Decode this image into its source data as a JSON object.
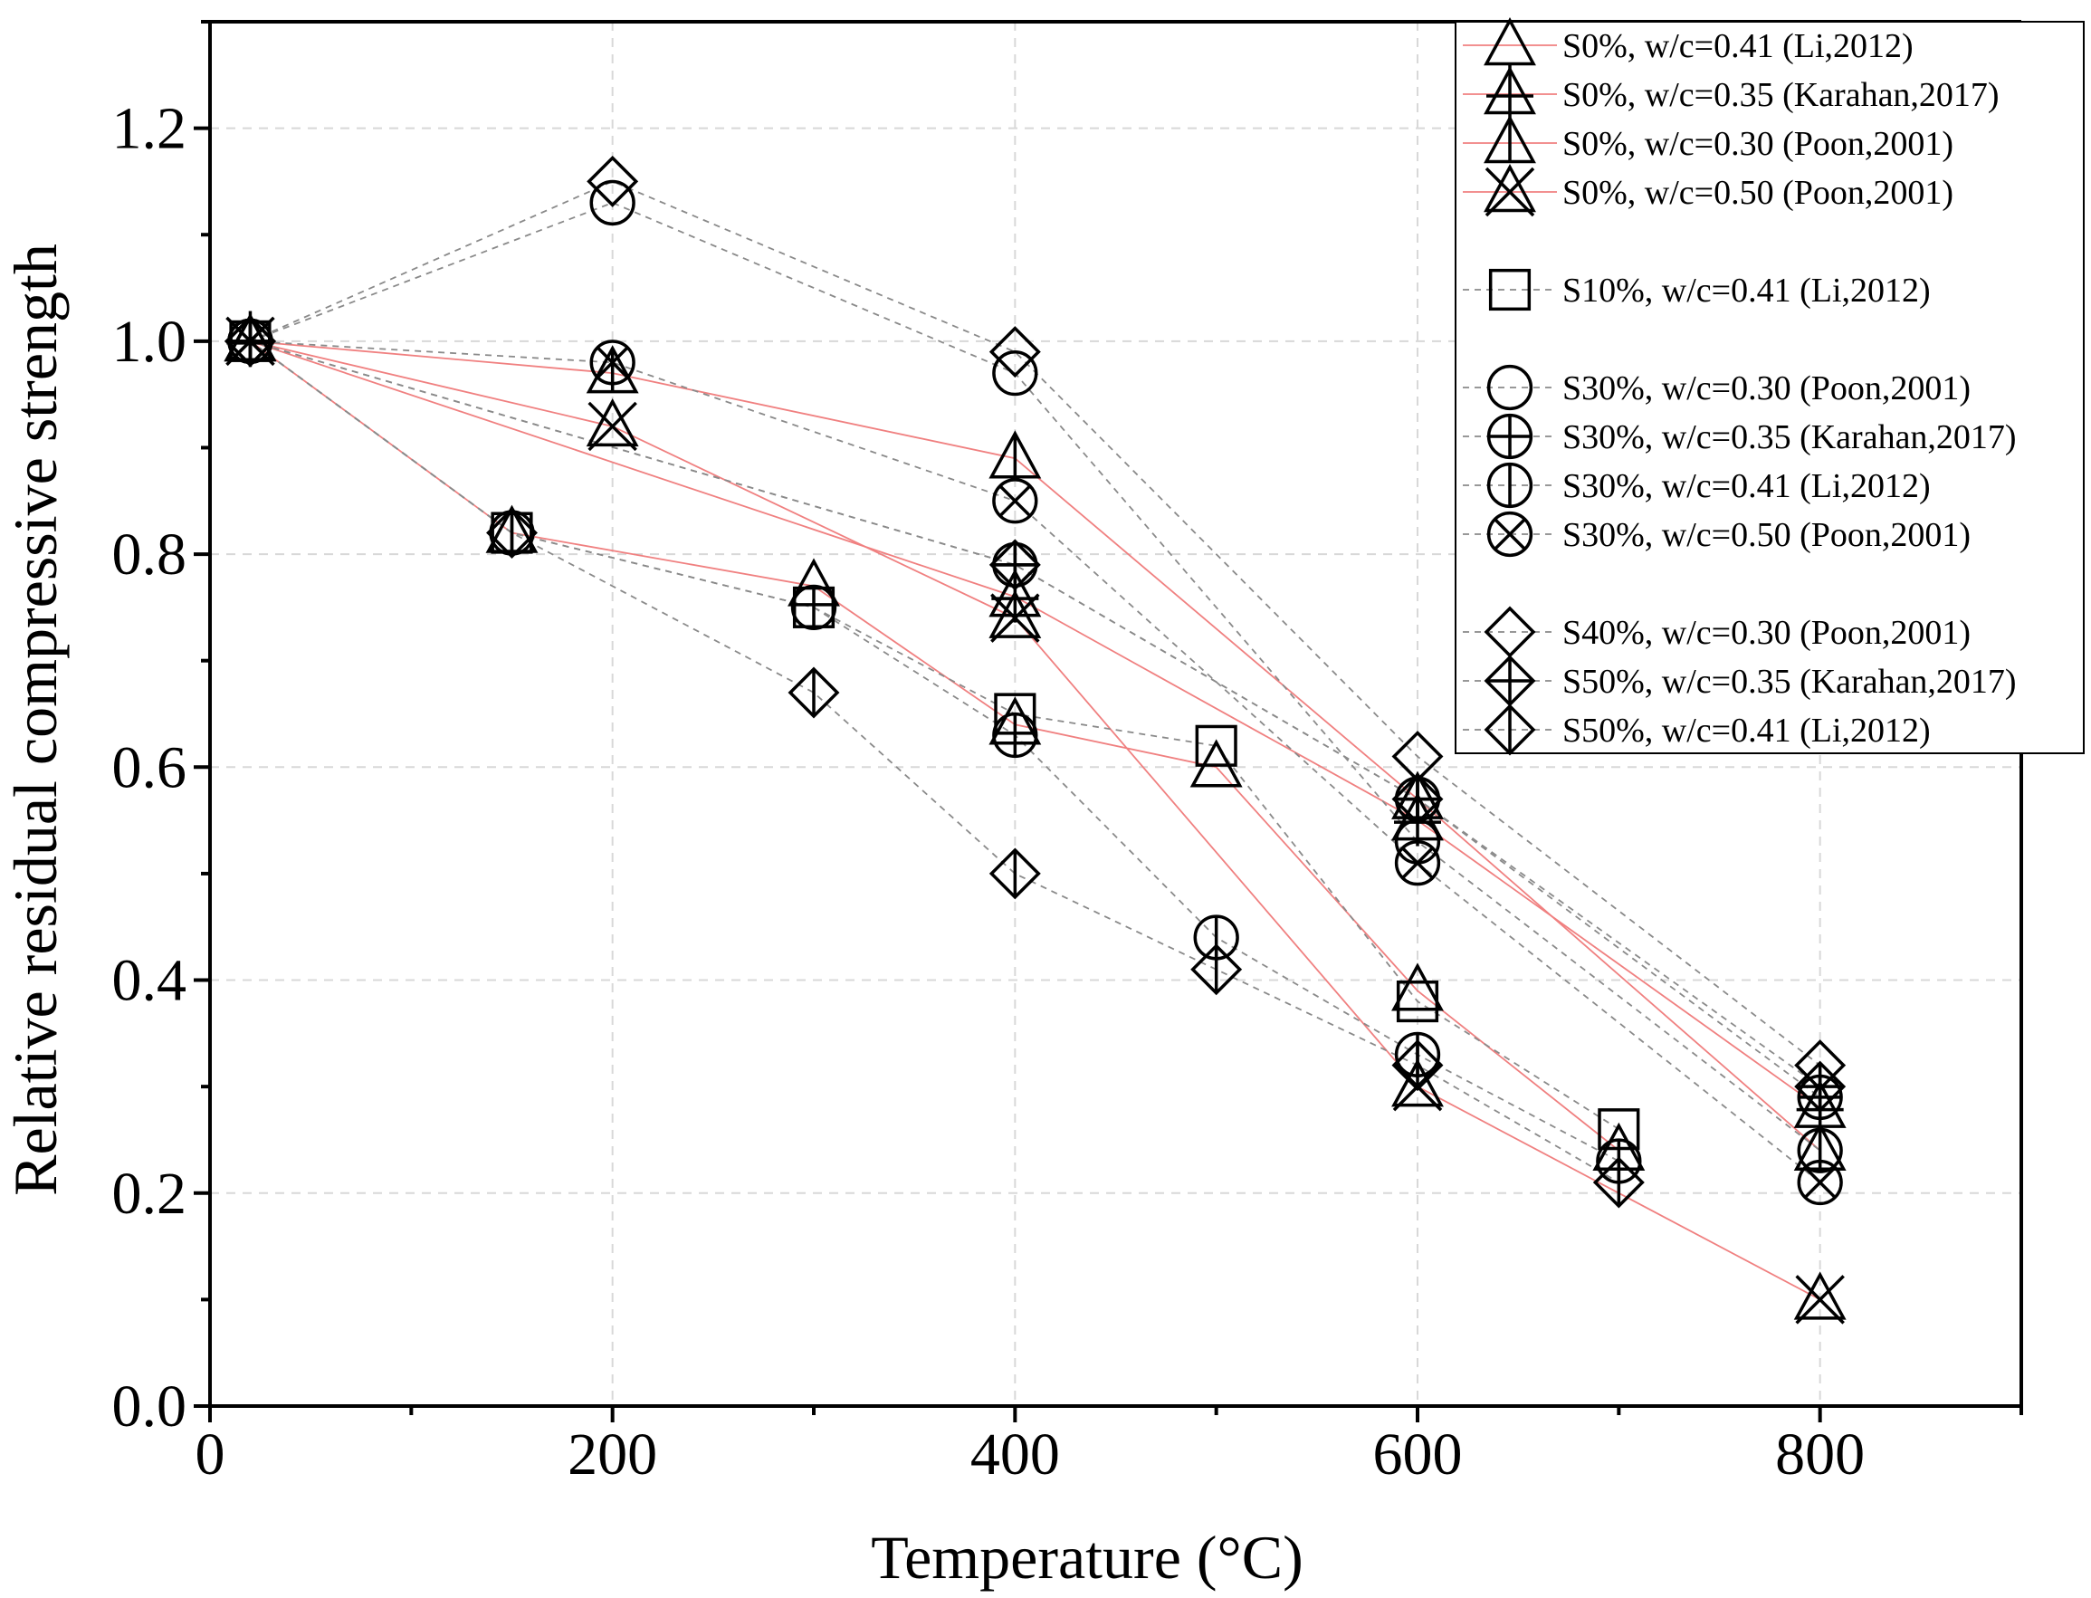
{
  "chart_data": {
    "type": "line",
    "xlabel": "Temperature (°C)",
    "ylabel": "Relative residual compressive strength",
    "xlim": [
      0,
      900
    ],
    "ylim": [
      0,
      1.3
    ],
    "xticks": [
      0,
      200,
      400,
      600,
      800
    ],
    "xtick_labels": [
      "0",
      "200",
      "400",
      "600",
      "800"
    ],
    "yticks": [
      0,
      0.2,
      0.4,
      0.6,
      0.8,
      1.0,
      1.2
    ],
    "ytick_labels": [
      "0.0",
      "0.2",
      "0.4",
      "0.6",
      "0.8",
      "1.0",
      "1.2"
    ],
    "grid": true,
    "legend_position": "top-right",
    "series": [
      {
        "name": "S0%, w/c=0.41 (Li,2012)",
        "marker": "triangle",
        "line": "red-solid",
        "x": [
          20,
          150,
          300,
          400,
          500,
          600,
          700
        ],
        "y": [
          1.0,
          0.82,
          0.77,
          0.64,
          0.6,
          0.39,
          0.24
        ]
      },
      {
        "name": "S0%, w/c=0.35 (Karahan,2017)",
        "marker": "triangle-plus",
        "line": "red-solid",
        "x": [
          20,
          400,
          600,
          800
        ],
        "y": [
          1.0,
          0.76,
          0.55,
          0.28
        ]
      },
      {
        "name": "S0%, w/c=0.30 (Poon,2001)",
        "marker": "triangle-bar",
        "line": "red-solid",
        "x": [
          20,
          200,
          400,
          600,
          800
        ],
        "y": [
          1.0,
          0.97,
          0.89,
          0.57,
          0.24
        ]
      },
      {
        "name": "S0%, w/c=0.50 (Poon,2001)",
        "marker": "triangle-x",
        "line": "red-solid",
        "x": [
          20,
          200,
          400,
          600,
          800
        ],
        "y": [
          1.0,
          0.92,
          0.74,
          0.3,
          0.1
        ]
      },
      {
        "name": "S10%, w/c=0.41 (Li,2012)",
        "marker": "square",
        "line": "gray-dash",
        "x": [
          20,
          150,
          300,
          400,
          500,
          600,
          700
        ],
        "y": [
          1.0,
          0.82,
          0.75,
          0.65,
          0.62,
          0.38,
          0.26
        ]
      },
      {
        "name": "S30%, w/c=0.30 (Poon,2001)",
        "marker": "circle",
        "line": "gray-dash",
        "x": [
          20,
          200,
          400,
          600,
          800
        ],
        "y": [
          1.0,
          1.13,
          0.97,
          0.53,
          0.24
        ]
      },
      {
        "name": "S30%, w/c=0.35 (Karahan,2017)",
        "marker": "circle-plus",
        "line": "gray-dash",
        "x": [
          20,
          400,
          600,
          800
        ],
        "y": [
          1.0,
          0.79,
          0.57,
          0.29
        ]
      },
      {
        "name": "S30%, w/c=0.41 (Li,2012)",
        "marker": "circle-bar",
        "line": "gray-dash",
        "x": [
          20,
          150,
          300,
          400,
          500,
          600,
          700
        ],
        "y": [
          1.0,
          0.82,
          0.75,
          0.63,
          0.44,
          0.33,
          0.23
        ]
      },
      {
        "name": "S30%, w/c=0.50 (Poon,2001)",
        "marker": "circle-x",
        "line": "gray-dash",
        "x": [
          20,
          200,
          400,
          600,
          800
        ],
        "y": [
          1.0,
          0.98,
          0.85,
          0.51,
          0.21
        ]
      },
      {
        "name": "S40%, w/c=0.30 (Poon,2001)",
        "marker": "diamond",
        "line": "gray-dash",
        "x": [
          20,
          200,
          400,
          600,
          800
        ],
        "y": [
          1.0,
          1.15,
          0.99,
          0.61,
          0.32
        ]
      },
      {
        "name": "S50%, w/c=0.35 (Karahan,2017)",
        "marker": "diamond-plus",
        "line": "gray-dash",
        "x": [
          20,
          400,
          600,
          800
        ],
        "y": [
          1.0,
          0.79,
          0.57,
          0.3
        ]
      },
      {
        "name": "S50%, w/c=0.41 (Li,2012)",
        "marker": "diamond-bar",
        "line": "gray-dash",
        "x": [
          20,
          150,
          300,
          400,
          500,
          600,
          700
        ],
        "y": [
          1.0,
          0.82,
          0.67,
          0.5,
          0.41,
          0.32,
          0.21
        ]
      }
    ],
    "legend_groups": [
      [
        0,
        1,
        2,
        3
      ],
      [
        4
      ],
      [
        5,
        6,
        7,
        8
      ],
      [
        9,
        10,
        11
      ]
    ]
  },
  "colors": {
    "red_line": "#f08080",
    "gray_line": "#8a8a8a",
    "grid": "#d8d8d8",
    "axis": "#000000",
    "marker": "#000000"
  }
}
